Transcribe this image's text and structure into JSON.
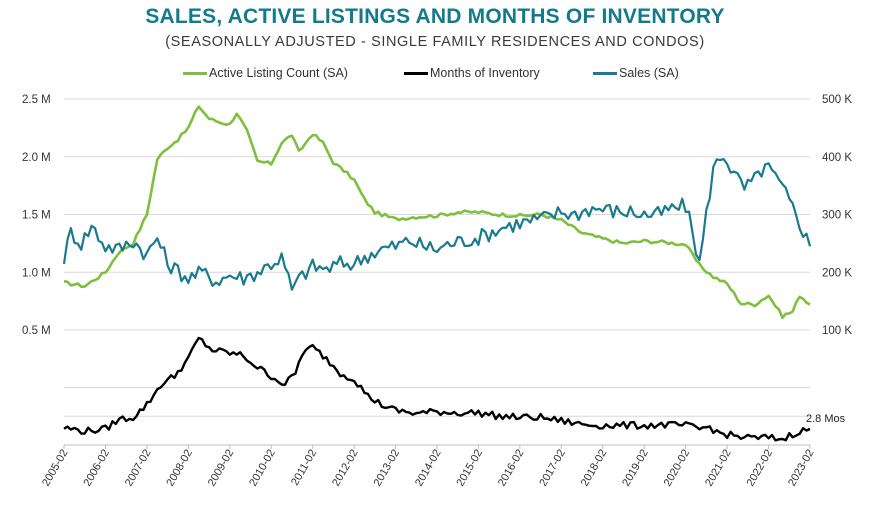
{
  "title": "SALES, ACTIVE LISTINGS AND MONTHS OF INVENTORY",
  "subtitle": "(SEASONALLY ADJUSTED - SINGLE FAMILY RESIDENCES AND CONDOS)",
  "colors": {
    "title": "#137a8c",
    "listings": "#7fbf3f",
    "inventory": "#000000",
    "sales": "#1a7a8f",
    "grid": "#d9d9d9"
  },
  "legend": [
    {
      "name": "Active Listing Count (SA)",
      "color_key": "listings"
    },
    {
      "name": "Months of Inventory",
      "color_key": "inventory"
    },
    {
      "name": "Sales (SA)",
      "color_key": "sales"
    }
  ],
  "chart_data": {
    "type": "line",
    "x_start": "2005-02",
    "x_end": "2023-02",
    "xticks": [
      "2005-02",
      "2006-02",
      "2007-02",
      "2008-02",
      "2009-02",
      "2010-02",
      "2011-02",
      "2012-02",
      "2013-02",
      "2014-02",
      "2015-02",
      "2016-02",
      "2017-02",
      "2018-02",
      "2019-02",
      "2020-02",
      "2021-02",
      "2022-02",
      "2023-02"
    ],
    "upper_panel": {
      "left_axis": {
        "ticks": [
          "2.5 M",
          "2.0 M",
          "1.5 M",
          "1.0 M",
          "0.5 M"
        ],
        "values": [
          2500000,
          2000000,
          1500000,
          1000000,
          500000
        ],
        "range": [
          500000,
          2500000
        ]
      },
      "right_axis": {
        "ticks": [
          "500 K",
          "400 K",
          "300 K",
          "200 K",
          "100 K"
        ],
        "values": [
          500000,
          400000,
          300000,
          200000,
          100000
        ],
        "range": [
          100000,
          500000
        ]
      },
      "grid": true
    },
    "lower_panel": {
      "range": [
        0,
        20
      ],
      "grid": true,
      "annotation": "2.8 Mos"
    },
    "series": [
      {
        "name": "Active Listing Count (SA)",
        "axis": "left",
        "points": [
          [
            "2005-02",
            910000
          ],
          [
            "2005-08",
            880000
          ],
          [
            "2006-02",
            1000000
          ],
          [
            "2006-06",
            1180000
          ],
          [
            "2006-10",
            1250000
          ],
          [
            "2007-02",
            1500000
          ],
          [
            "2007-05",
            1980000
          ],
          [
            "2007-08",
            2080000
          ],
          [
            "2007-11",
            2150000
          ],
          [
            "2008-02",
            2250000
          ],
          [
            "2008-05",
            2440000
          ],
          [
            "2008-08",
            2330000
          ],
          [
            "2008-11",
            2300000
          ],
          [
            "2009-02",
            2280000
          ],
          [
            "2009-04",
            2380000
          ],
          [
            "2009-07",
            2220000
          ],
          [
            "2009-10",
            1960000
          ],
          [
            "2010-02",
            1940000
          ],
          [
            "2010-05",
            2120000
          ],
          [
            "2010-08",
            2190000
          ],
          [
            "2010-10",
            2040000
          ],
          [
            "2011-02",
            2200000
          ],
          [
            "2011-05",
            2120000
          ],
          [
            "2011-08",
            1950000
          ],
          [
            "2011-11",
            1880000
          ],
          [
            "2012-02",
            1800000
          ],
          [
            "2012-05",
            1630000
          ],
          [
            "2012-08",
            1520000
          ],
          [
            "2013-02",
            1460000
          ],
          [
            "2013-08",
            1480000
          ],
          [
            "2014-02",
            1490000
          ],
          [
            "2014-08",
            1520000
          ],
          [
            "2015-02",
            1520000
          ],
          [
            "2015-08",
            1500000
          ],
          [
            "2016-02",
            1490000
          ],
          [
            "2016-08",
            1500000
          ],
          [
            "2017-02",
            1450000
          ],
          [
            "2017-08",
            1340000
          ],
          [
            "2018-02",
            1290000
          ],
          [
            "2018-08",
            1250000
          ],
          [
            "2019-02",
            1270000
          ],
          [
            "2019-08",
            1260000
          ],
          [
            "2020-02",
            1240000
          ],
          [
            "2020-06",
            1060000
          ],
          [
            "2020-10",
            960000
          ],
          [
            "2021-02",
            900000
          ],
          [
            "2021-06",
            730000
          ],
          [
            "2021-10",
            720000
          ],
          [
            "2022-02",
            800000
          ],
          [
            "2022-06",
            620000
          ],
          [
            "2022-09",
            660000
          ],
          [
            "2022-11",
            800000
          ],
          [
            "2023-02",
            720000
          ]
        ]
      },
      {
        "name": "Sales (SA)",
        "axis": "right",
        "points": [
          [
            "2005-02",
            225000
          ],
          [
            "2005-04",
            270000
          ],
          [
            "2005-07",
            250000
          ],
          [
            "2005-10",
            280000
          ],
          [
            "2006-02",
            245000
          ],
          [
            "2006-06",
            240000
          ],
          [
            "2006-10",
            255000
          ],
          [
            "2007-02",
            230000
          ],
          [
            "2007-05",
            260000
          ],
          [
            "2007-08",
            215000
          ],
          [
            "2008-02",
            190000
          ],
          [
            "2008-06",
            200000
          ],
          [
            "2008-10",
            185000
          ],
          [
            "2009-02",
            195000
          ],
          [
            "2009-06",
            190000
          ],
          [
            "2009-10",
            200000
          ],
          [
            "2010-02",
            215000
          ],
          [
            "2010-05",
            225000
          ],
          [
            "2010-08",
            170000
          ],
          [
            "2010-11",
            195000
          ],
          [
            "2011-02",
            210000
          ],
          [
            "2011-06",
            205000
          ],
          [
            "2011-10",
            215000
          ],
          [
            "2012-02",
            215000
          ],
          [
            "2012-06",
            230000
          ],
          [
            "2012-10",
            240000
          ],
          [
            "2013-02",
            245000
          ],
          [
            "2013-06",
            255000
          ],
          [
            "2013-10",
            245000
          ],
          [
            "2014-02",
            240000
          ],
          [
            "2014-06",
            250000
          ],
          [
            "2014-10",
            255000
          ],
          [
            "2015-02",
            260000
          ],
          [
            "2015-06",
            270000
          ],
          [
            "2015-10",
            280000
          ],
          [
            "2016-02",
            285000
          ],
          [
            "2016-06",
            290000
          ],
          [
            "2016-10",
            295000
          ],
          [
            "2017-02",
            305000
          ],
          [
            "2017-06",
            300000
          ],
          [
            "2017-10",
            310000
          ],
          [
            "2018-02",
            310000
          ],
          [
            "2018-06",
            305000
          ],
          [
            "2018-10",
            305000
          ],
          [
            "2019-02",
            300000
          ],
          [
            "2019-06",
            300000
          ],
          [
            "2019-10",
            310000
          ],
          [
            "2020-02",
            315000
          ],
          [
            "2020-04",
            270000
          ],
          [
            "2020-06",
            215000
          ],
          [
            "2020-08",
            300000
          ],
          [
            "2020-10",
            380000
          ],
          [
            "2021-01",
            405000
          ],
          [
            "2021-04",
            370000
          ],
          [
            "2021-07",
            345000
          ],
          [
            "2021-10",
            360000
          ],
          [
            "2022-01",
            385000
          ],
          [
            "2022-04",
            365000
          ],
          [
            "2022-07",
            335000
          ],
          [
            "2022-10",
            300000
          ],
          [
            "2023-02",
            245000
          ]
        ]
      },
      {
        "name": "Months of Inventory",
        "axis": "lower",
        "points": [
          [
            "2005-02",
            3.0
          ],
          [
            "2005-08",
            2.4
          ],
          [
            "2006-02",
            2.8
          ],
          [
            "2006-06",
            4.5
          ],
          [
            "2006-10",
            4.8
          ],
          [
            "2007-02",
            7.0
          ],
          [
            "2007-06",
            10.5
          ],
          [
            "2007-10",
            12.0
          ],
          [
            "2008-02",
            15.0
          ],
          [
            "2008-05",
            18.5
          ],
          [
            "2008-09",
            16.5
          ],
          [
            "2009-02",
            16.0
          ],
          [
            "2009-06",
            15.5
          ],
          [
            "2009-10",
            13.5
          ],
          [
            "2010-02",
            12.0
          ],
          [
            "2010-06",
            10.5
          ],
          [
            "2010-09",
            12.5
          ],
          [
            "2010-11",
            16.0
          ],
          [
            "2011-02",
            17.0
          ],
          [
            "2011-06",
            15.0
          ],
          [
            "2011-10",
            12.5
          ],
          [
            "2012-02",
            11.5
          ],
          [
            "2012-06",
            8.5
          ],
          [
            "2012-10",
            7.0
          ],
          [
            "2013-02",
            6.0
          ],
          [
            "2013-08",
            5.5
          ],
          [
            "2014-02",
            5.8
          ],
          [
            "2014-08",
            5.6
          ],
          [
            "2015-02",
            5.6
          ],
          [
            "2015-08",
            5.0
          ],
          [
            "2016-02",
            4.8
          ],
          [
            "2016-08",
            4.8
          ],
          [
            "2017-02",
            4.2
          ],
          [
            "2017-08",
            3.6
          ],
          [
            "2018-02",
            3.4
          ],
          [
            "2018-08",
            3.4
          ],
          [
            "2019-02",
            3.4
          ],
          [
            "2019-08",
            3.5
          ],
          [
            "2020-02",
            3.4
          ],
          [
            "2020-06",
            2.8
          ],
          [
            "2020-09",
            3.2
          ],
          [
            "2020-11",
            2.2
          ],
          [
            "2021-02",
            1.8
          ],
          [
            "2021-06",
            1.4
          ],
          [
            "2021-10",
            1.2
          ],
          [
            "2022-02",
            1.3
          ],
          [
            "2022-06",
            1.0
          ],
          [
            "2022-10",
            2.2
          ],
          [
            "2023-02",
            2.8
          ]
        ]
      }
    ]
  }
}
